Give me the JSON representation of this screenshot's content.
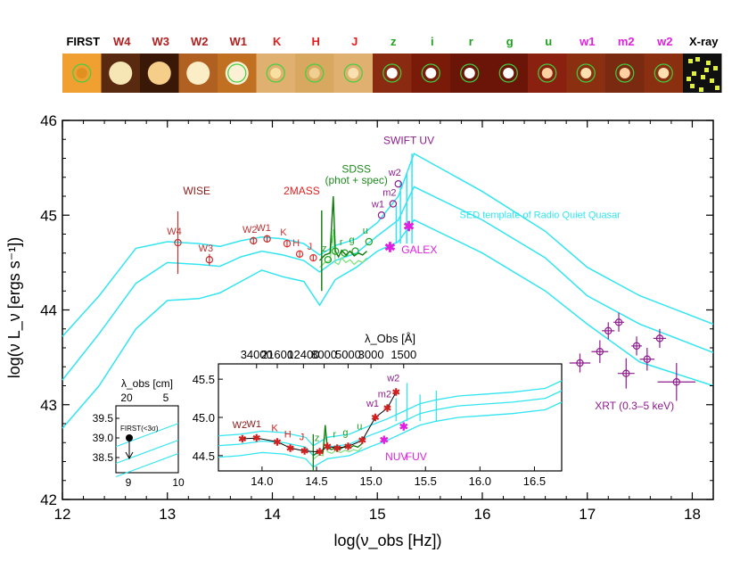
{
  "chart_data": {
    "type": "scatter",
    "title": "",
    "xlabel": "log(ν_obs [Hz])",
    "ylabel": "log(ν L_ν [ergs s⁻¹])",
    "xlim": [
      12,
      18.2
    ],
    "ylim": [
      42,
      46
    ],
    "xticks": [
      "12",
      "13",
      "14",
      "15",
      "16",
      "17",
      "18"
    ],
    "yticks": [
      "42",
      "43",
      "44",
      "45",
      "46"
    ],
    "thumbnails": [
      {
        "label": "FIRST",
        "color": "#000000",
        "bg": "#f0a030",
        "source": "#e09020",
        "circle": true
      },
      {
        "label": "W4",
        "color": "#b02020",
        "bg": "#5a2a10",
        "source": "#fff0c0",
        "circle": false
      },
      {
        "label": "W3",
        "color": "#b02020",
        "bg": "#3a1808",
        "source": "#ffd890",
        "circle": false
      },
      {
        "label": "W2",
        "color": "#b02020",
        "bg": "#b06020",
        "source": "#fff5d0",
        "circle": false
      },
      {
        "label": "W1",
        "color": "#b02020",
        "bg": "#c07020",
        "source": "#fff8e0",
        "circle": true
      },
      {
        "label": "K",
        "color": "#e02020",
        "bg": "#e0b070",
        "source": "#f8e0a0",
        "circle": true
      },
      {
        "label": "H",
        "color": "#e02020",
        "bg": "#d8a860",
        "source": "#f0d090",
        "circle": true
      },
      {
        "label": "J",
        "color": "#e02020",
        "bg": "#e0b070",
        "source": "#f8e0b0",
        "circle": true
      },
      {
        "label": "z",
        "color": "#20a020",
        "bg": "#8a2a10",
        "source": "#ffffff",
        "circle": true
      },
      {
        "label": "i",
        "color": "#20a020",
        "bg": "#7a1a08",
        "source": "#ffffff",
        "circle": true
      },
      {
        "label": "r",
        "color": "#20a020",
        "bg": "#6a1508",
        "source": "#ffffff",
        "circle": true
      },
      {
        "label": "g",
        "color": "#20a020",
        "bg": "#6a1508",
        "source": "#ffffff",
        "circle": true
      },
      {
        "label": "u",
        "color": "#20a020",
        "bg": "#8a2010",
        "source": "#ffd0a0",
        "circle": true
      },
      {
        "label": "w1",
        "color": "#e020e0",
        "bg": "#8a3010",
        "source": "#ffe0b0",
        "circle": true
      },
      {
        "label": "m2",
        "color": "#e020e0",
        "bg": "#7a2a10",
        "source": "#ffd0a0",
        "circle": true
      },
      {
        "label": "w2",
        "color": "#e020e0",
        "bg": "#8a3010",
        "source": "#ffe0b0",
        "circle": true
      },
      {
        "label": "X-ray",
        "color": "#000000",
        "bg": "#101010",
        "source": "#e0f040",
        "circle": false
      }
    ],
    "series": [
      {
        "name": "WISE",
        "color": "#c03030",
        "marker": "circle",
        "points": [
          {
            "label": "W4",
            "x": 13.1,
            "y": 44.71,
            "yerr": 0.33
          },
          {
            "label": "W3",
            "x": 13.4,
            "y": 44.53,
            "yerr": 0.06
          },
          {
            "label": "W2",
            "x": 13.82,
            "y": 44.73,
            "yerr": 0.04
          },
          {
            "label": "W1",
            "x": 13.95,
            "y": 44.75,
            "yerr": 0.04
          }
        ]
      },
      {
        "name": "2MASS",
        "color": "#e03030",
        "marker": "circle",
        "points": [
          {
            "label": "K",
            "x": 14.14,
            "y": 44.7,
            "yerr": 0.04
          },
          {
            "label": "H",
            "x": 14.26,
            "y": 44.59,
            "yerr": 0.03
          },
          {
            "label": "J",
            "x": 14.39,
            "y": 44.55,
            "yerr": 0.03
          }
        ]
      },
      {
        "name": "SDSS",
        "color": "#20a020",
        "marker": "circle",
        "points": [
          {
            "label": "z",
            "x": 14.53,
            "y": 44.53
          },
          {
            "label": "i",
            "x": 14.6,
            "y": 44.62
          },
          {
            "label": "r",
            "x": 14.69,
            "y": 44.6
          },
          {
            "label": "g",
            "x": 14.79,
            "y": 44.62
          },
          {
            "label": "u",
            "x": 14.92,
            "y": 44.72
          }
        ]
      },
      {
        "name": "SWIFT UV",
        "color": "#8e1c8e",
        "marker": "circle",
        "points": [
          {
            "label": "w1",
            "x": 15.04,
            "y": 45.0
          },
          {
            "label": "m2",
            "x": 15.15,
            "y": 45.12
          },
          {
            "label": "w2",
            "x": 15.2,
            "y": 45.33
          }
        ]
      },
      {
        "name": "GALEX",
        "color": "#e020e0",
        "marker": "star",
        "points": [
          {
            "label": "NUV",
            "x": 15.12,
            "y": 44.66
          },
          {
            "label": "FUV",
            "x": 15.3,
            "y": 44.88
          }
        ]
      },
      {
        "name": "XRT (0.3–5 keV)",
        "color": "#8e1c8e",
        "marker": "circle",
        "points": [
          {
            "x": 16.93,
            "y": 43.44,
            "xerr": 0.1,
            "yerr": 0.1
          },
          {
            "x": 17.12,
            "y": 43.56,
            "xerr": 0.08,
            "yerr": 0.12
          },
          {
            "x": 17.2,
            "y": 43.78,
            "xerr": 0.06,
            "yerr": 0.09
          },
          {
            "x": 17.3,
            "y": 43.87,
            "xerr": 0.05,
            "yerr": 0.1
          },
          {
            "x": 17.37,
            "y": 43.33,
            "xerr": 0.08,
            "yerr": 0.16
          },
          {
            "x": 17.47,
            "y": 43.62,
            "xerr": 0.05,
            "yerr": 0.1
          },
          {
            "x": 17.57,
            "y": 43.48,
            "xerr": 0.07,
            "yerr": 0.12
          },
          {
            "x": 17.69,
            "y": 43.7,
            "xerr": 0.06,
            "yerr": 0.1
          },
          {
            "x": 17.85,
            "y": 43.24,
            "xerr": 0.18,
            "yerr": 0.2
          }
        ]
      }
    ],
    "template": {
      "name": "SED template of Radio Quiet Quasar",
      "color": "#33e5f0",
      "x": [
        12.0,
        12.35,
        12.7,
        13.0,
        13.3,
        13.5,
        13.7,
        13.9,
        14.1,
        14.3,
        14.45,
        14.6,
        14.8,
        15.0,
        15.2,
        15.35,
        16.0,
        16.6,
        17.0,
        17.5,
        18.2
      ],
      "upper": [
        43.72,
        44.15,
        44.65,
        44.72,
        44.7,
        44.67,
        44.73,
        44.77,
        44.75,
        44.7,
        44.58,
        44.68,
        44.75,
        44.92,
        45.2,
        45.65,
        45.25,
        44.83,
        44.45,
        44.15,
        43.85
      ],
      "middle": [
        43.26,
        43.75,
        44.28,
        44.5,
        44.48,
        44.46,
        44.56,
        44.62,
        44.58,
        44.52,
        44.4,
        44.52,
        44.6,
        44.78,
        44.95,
        45.3,
        44.95,
        44.55,
        44.15,
        43.85,
        43.55
      ],
      "lower": [
        42.75,
        43.2,
        43.8,
        44.1,
        44.12,
        44.18,
        44.3,
        44.42,
        44.35,
        44.3,
        44.05,
        44.32,
        44.45,
        44.62,
        44.72,
        44.95,
        44.6,
        44.2,
        43.85,
        43.45,
        43.2
      ]
    },
    "sdss_spectrum": {
      "name": "SDSS (phot + spec)",
      "color": "#0d7a0d",
      "color_light": "#7ee07e",
      "x": [
        14.45,
        14.5,
        14.55,
        14.58,
        14.6,
        14.63,
        14.66,
        14.7,
        14.74,
        14.78,
        14.82,
        14.86,
        14.9
      ],
      "y": [
        44.52,
        44.58,
        44.6,
        45.2,
        44.62,
        44.56,
        44.63,
        44.58,
        44.62,
        44.57,
        44.6,
        44.58,
        44.62
      ],
      "y_light": [
        44.45,
        44.5,
        44.52,
        44.85,
        44.5,
        44.48,
        44.55,
        44.5,
        44.53,
        44.48,
        44.52,
        44.5,
        44.55
      ]
    },
    "annotations": [
      {
        "text": "WISE",
        "color": "#8b1a1a",
        "x": 13.28,
        "y": 45.22
      },
      {
        "text": "2MASS",
        "color": "#e02020",
        "x": 14.28,
        "y": 45.22
      },
      {
        "text": "SDSS",
        "color": "#1e8a1e",
        "x": 14.8,
        "y": 45.45
      },
      {
        "text": "(phot + spec)",
        "color": "#1e8a1e",
        "x": 14.8,
        "y": 45.33
      },
      {
        "text": "SWIFT UV",
        "color": "#8e1c8e",
        "x": 15.3,
        "y": 45.75
      },
      {
        "text": "GALEX",
        "color": "#e020e0",
        "x": 15.4,
        "y": 44.6
      },
      {
        "text": "SED template of Radio Quiet Quasar",
        "color": "#33e5f0",
        "x": 16.55,
        "y": 44.97
      },
      {
        "text": "XRT (0.3–5 keV)",
        "color": "#8e1c8e",
        "x": 17.45,
        "y": 42.95
      }
    ],
    "inset": {
      "xlim": [
        13.6,
        16.75
      ],
      "ylim": [
        44.3,
        45.7
      ],
      "xticks": [
        "14.0",
        "14.5",
        "15.0",
        "15.5",
        "16.0",
        "16.5"
      ],
      "yticks": [
        "44.5",
        "45.0",
        "45.5"
      ],
      "top_axis_label": "λ_Obs [Å]",
      "top_ticks": [
        "34000",
        "21600",
        "12400",
        "8000",
        "5000",
        "3000",
        "1500"
      ],
      "top_tick_x": [
        13.95,
        14.14,
        14.38,
        14.57,
        14.79,
        15.0,
        15.3
      ],
      "seds_points": [
        {
          "label": "W2",
          "x": 13.82,
          "y": 44.72,
          "color": "#8b1a1a"
        },
        {
          "label": "W1",
          "x": 13.95,
          "y": 44.73,
          "color": "#8b1a1a"
        },
        {
          "label": "K",
          "x": 14.14,
          "y": 44.68,
          "color": "#e02020"
        },
        {
          "label": "H",
          "x": 14.26,
          "y": 44.6,
          "color": "#e02020"
        },
        {
          "label": "J",
          "x": 14.39,
          "y": 44.56,
          "color": "#e02020"
        },
        {
          "label": "z",
          "x": 14.53,
          "y": 44.55,
          "color": "#20a020"
        },
        {
          "label": "i",
          "x": 14.6,
          "y": 44.62,
          "color": "#20a020"
        },
        {
          "label": "r",
          "x": 14.69,
          "y": 44.6,
          "color": "#20a020"
        },
        {
          "label": "g",
          "x": 14.79,
          "y": 44.62,
          "color": "#20a020"
        },
        {
          "label": "u",
          "x": 14.92,
          "y": 44.7,
          "color": "#20a020"
        },
        {
          "label": "w1",
          "x": 15.04,
          "y": 45.0,
          "color": "#8e1c8e"
        },
        {
          "label": "m2",
          "x": 15.15,
          "y": 45.12,
          "color": "#8e1c8e"
        },
        {
          "label": "w2",
          "x": 15.23,
          "y": 45.33,
          "color": "#8e1c8e"
        }
      ],
      "galex_labels": [
        "NUV",
        "FUV"
      ],
      "galex_x": [
        15.12,
        15.3
      ],
      "galex_y": [
        44.7,
        44.88
      ]
    },
    "small_inset": {
      "top_axis_label": "λ_obs [cm]",
      "top_ticks": [
        "20",
        "5"
      ],
      "xticks": [
        "9",
        "10"
      ],
      "yticks": [
        "39.5",
        "39.0",
        "38.5"
      ],
      "limit_label": "FIRST(<3σ)",
      "limit_value": 39.0
    }
  }
}
